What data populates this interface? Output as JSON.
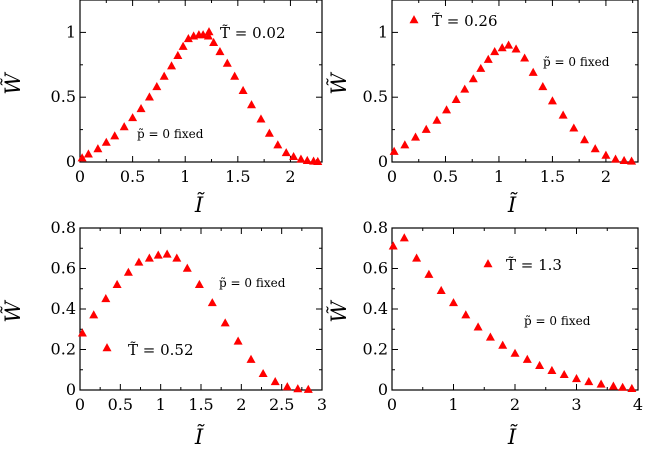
{
  "chart_data": [
    {
      "type": "scatter",
      "xlabel": "Ĩ",
      "ylabel": "W̃",
      "xlim": [
        0,
        2.3
      ],
      "ylim": [
        0,
        1.25
      ],
      "xticks": [
        0,
        0.5,
        1,
        1.5,
        2
      ],
      "xtick_labels": [
        "0",
        "0.5",
        "1",
        "1.5",
        "2"
      ],
      "yticks": [
        0,
        0.5,
        1
      ],
      "ytick_labels": [
        "0",
        "0.5",
        "1"
      ],
      "annotations": [
        "T̃ = 0.02",
        "p̃ = 0 fixed"
      ],
      "legend_marker_color": "#ff0000",
      "series": [
        {
          "marker": "triangle",
          "color": "#ff0000",
          "x": [
            0.02,
            0.08,
            0.17,
            0.25,
            0.33,
            0.42,
            0.5,
            0.58,
            0.66,
            0.73,
            0.8,
            0.87,
            0.93,
            0.98,
            1.03,
            1.08,
            1.13,
            1.17,
            1.22,
            1.27,
            1.33,
            1.4,
            1.47,
            1.55,
            1.63,
            1.72,
            1.8,
            1.88,
            1.96,
            2.03,
            2.1,
            2.16,
            2.22,
            2.26
          ],
          "y": [
            0.03,
            0.06,
            0.1,
            0.15,
            0.2,
            0.27,
            0.34,
            0.41,
            0.5,
            0.58,
            0.66,
            0.74,
            0.82,
            0.89,
            0.95,
            0.97,
            0.98,
            0.98,
            0.97,
            0.92,
            0.85,
            0.76,
            0.66,
            0.55,
            0.44,
            0.33,
            0.22,
            0.13,
            0.07,
            0.04,
            0.02,
            0.01,
            0.005,
            0.002
          ]
        }
      ]
    },
    {
      "type": "scatter",
      "xlabel": "Ĩ",
      "ylabel": "W̃",
      "xlim": [
        0,
        2.3
      ],
      "ylim": [
        0,
        1.25
      ],
      "xticks": [
        0,
        0.5,
        1,
        1.5,
        2
      ],
      "xtick_labels": [
        "0",
        "0.5",
        "1",
        "1.5",
        "2"
      ],
      "yticks": [
        0,
        0.5,
        1
      ],
      "ytick_labels": [
        "0",
        "0.5",
        "1"
      ],
      "annotations": [
        "T̃ = 0.26",
        "p̃ = 0 fixed"
      ],
      "legend_marker_color": "#ff0000",
      "series": [
        {
          "marker": "triangle",
          "color": "#ff0000",
          "x": [
            0.02,
            0.12,
            0.22,
            0.32,
            0.42,
            0.51,
            0.6,
            0.68,
            0.76,
            0.83,
            0.9,
            0.96,
            1.03,
            1.09,
            1.16,
            1.24,
            1.32,
            1.41,
            1.5,
            1.6,
            1.7,
            1.8,
            1.9,
            2.0,
            2.09,
            2.17,
            2.24
          ],
          "y": [
            0.08,
            0.13,
            0.19,
            0.25,
            0.32,
            0.4,
            0.48,
            0.56,
            0.64,
            0.72,
            0.79,
            0.85,
            0.88,
            0.9,
            0.87,
            0.8,
            0.69,
            0.58,
            0.47,
            0.36,
            0.26,
            0.17,
            0.1,
            0.05,
            0.02,
            0.01,
            0.005
          ]
        }
      ]
    },
    {
      "type": "scatter",
      "xlabel": "Ĩ",
      "ylabel": "W̃",
      "xlim": [
        0,
        3
      ],
      "ylim": [
        0,
        0.8
      ],
      "xticks": [
        0,
        0.5,
        1,
        1.5,
        2,
        2.5,
        3
      ],
      "xtick_labels": [
        "0",
        "0.5",
        "1",
        "1.5",
        "2",
        "2.5",
        "3"
      ],
      "yticks": [
        0,
        0.2,
        0.4,
        0.6,
        0.8
      ],
      "ytick_labels": [
        "0",
        "0.2",
        "0.4",
        "0.6",
        "0.8"
      ],
      "annotations": [
        "T̃ = 0.52",
        "p̃ = 0 fixed"
      ],
      "legend_marker_color": "#ff0000",
      "series": [
        {
          "marker": "triangle",
          "color": "#ff0000",
          "x": [
            0.03,
            0.17,
            0.32,
            0.46,
            0.6,
            0.73,
            0.86,
            0.97,
            1.08,
            1.2,
            1.33,
            1.48,
            1.64,
            1.8,
            1.96,
            2.12,
            2.27,
            2.42,
            2.57,
            2.7,
            2.83
          ],
          "y": [
            0.28,
            0.37,
            0.45,
            0.52,
            0.58,
            0.63,
            0.65,
            0.665,
            0.67,
            0.65,
            0.6,
            0.52,
            0.43,
            0.33,
            0.24,
            0.15,
            0.08,
            0.04,
            0.015,
            0.005,
            0.002
          ]
        }
      ]
    },
    {
      "type": "scatter",
      "xlabel": "Ĩ",
      "ylabel": "W̃",
      "xlim": [
        0,
        4
      ],
      "ylim": [
        0,
        0.8
      ],
      "xticks": [
        0,
        1,
        2,
        3,
        4
      ],
      "xtick_labels": [
        "0",
        "1",
        "2",
        "3",
        "4"
      ],
      "yticks": [
        0,
        0.2,
        0.4,
        0.6,
        0.8
      ],
      "ytick_labels": [
        "0",
        "0.2",
        "0.4",
        "0.6",
        "0.8"
      ],
      "annotations": [
        "T̃ = 1.3",
        "p̃ = 0 fixed"
      ],
      "legend_marker_color": "#ff0000",
      "series": [
        {
          "marker": "triangle",
          "color": "#ff0000",
          "x": [
            0.02,
            0.2,
            0.4,
            0.6,
            0.8,
            1.0,
            1.2,
            1.4,
            1.6,
            1.8,
            2.0,
            2.2,
            2.4,
            2.6,
            2.8,
            3.0,
            3.2,
            3.4,
            3.6,
            3.75,
            3.9
          ],
          "y": [
            0.71,
            0.75,
            0.65,
            0.57,
            0.49,
            0.43,
            0.37,
            0.31,
            0.26,
            0.22,
            0.18,
            0.15,
            0.12,
            0.095,
            0.075,
            0.055,
            0.04,
            0.028,
            0.018,
            0.012,
            0.006
          ]
        }
      ]
    }
  ]
}
